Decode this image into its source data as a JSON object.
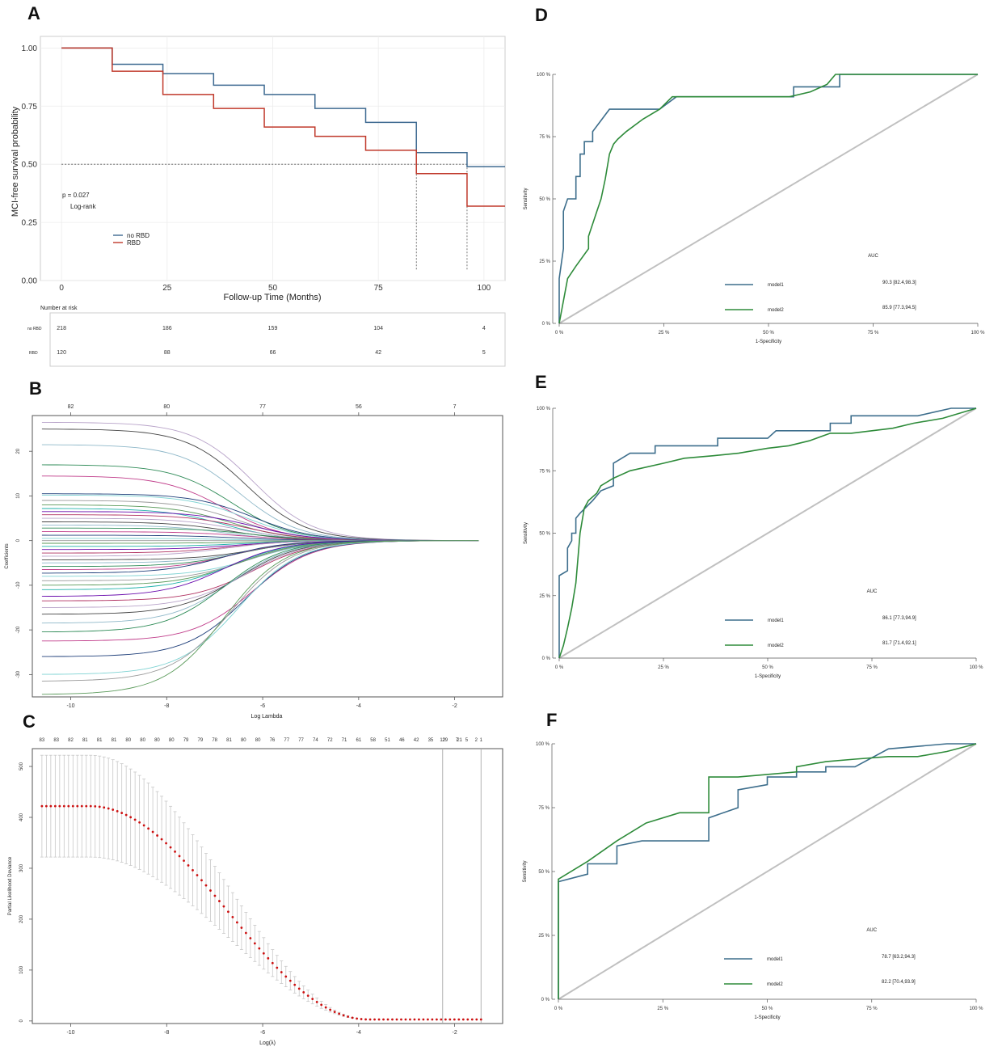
{
  "panels": {
    "A": {
      "letter": "A",
      "chart_data": {
        "type": "line",
        "ylabel": "MCI-free survival probability",
        "xlabel": "Follow-up Time (Months)",
        "xlim": [
          -5,
          105
        ],
        "ylim": [
          0,
          1.05
        ],
        "x_ticks": [
          0,
          25,
          50,
          75,
          100
        ],
        "y_ticks": [
          0,
          0.25,
          0.5,
          0.75,
          1.0
        ],
        "x_tick_labels": [
          "0",
          "25",
          "50",
          "75",
          "100"
        ],
        "y_tick_labels": [
          "0.00",
          "0.25",
          "0.50",
          "0.75",
          "1.00"
        ],
        "pvalue": "p = 0.027",
        "test": "Log-rank",
        "median_ref": 0.5,
        "medians": [
          84,
          96
        ],
        "series": [
          {
            "name": "no RBD",
            "color": "#3e6a91",
            "x": [
              0,
              12,
              24,
              36,
              48,
              60,
              72,
              84,
              96,
              105
            ],
            "y": [
              1.0,
              0.93,
              0.89,
              0.84,
              0.8,
              0.74,
              0.68,
              0.55,
              0.49,
              0.49
            ]
          },
          {
            "name": "RBD",
            "color": "#c0392b",
            "x": [
              0,
              12,
              24,
              36,
              48,
              60,
              72,
              84,
              96,
              105
            ],
            "y": [
              1.0,
              0.9,
              0.8,
              0.74,
              0.66,
              0.62,
              0.56,
              0.46,
              0.32,
              0.32
            ]
          }
        ],
        "risk_table": {
          "title": "Number at risk",
          "times": [
            0,
            25,
            50,
            75,
            100
          ],
          "rows": [
            {
              "label": "no RBD",
              "color": "#3e6a91",
              "values": [
                "218",
                "186",
                "159",
                "104",
                "4"
              ]
            },
            {
              "label": "RBD",
              "color": "#c0392b",
              "values": [
                "120",
                "88",
                "66",
                "42",
                "5"
              ]
            }
          ]
        }
      }
    },
    "B": {
      "letter": "B",
      "chart_data": {
        "type": "line",
        "xlabel": "Log Lambda",
        "ylabel": "Coefficients",
        "xlim": [
          -10.8,
          -1.0
        ],
        "ylim": [
          -35,
          28
        ],
        "x_ticks": [
          -10,
          -8,
          -6,
          -4,
          -2
        ],
        "x_tick_labels": [
          "-10",
          "-8",
          "-6",
          "-4",
          "-2"
        ],
        "y_ticks": [
          -30,
          -20,
          -10,
          0,
          10,
          20
        ],
        "y_tick_labels": [
          "-30",
          "-20",
          "-10",
          "0",
          "10",
          "20"
        ],
        "top_ticks": [
          -10,
          -8,
          -6,
          -4,
          -2
        ],
        "top_labels": [
          "82",
          "80",
          "77",
          "56",
          "7"
        ],
        "x_range": [
          -10.6,
          -1.5
        ],
        "start_coefficients": [
          26.5,
          25.0,
          21.5,
          17.0,
          14.5,
          10.5,
          10.2,
          9.0,
          8.0,
          7.2,
          6.5,
          5.8,
          5.0,
          4.2,
          3.5,
          2.8,
          2.0,
          1.2,
          0.5,
          0.0,
          -0.6,
          -1.3,
          -2.0,
          -2.8,
          -3.5,
          -4.3,
          -5.0,
          -5.8,
          -6.5,
          -7.3,
          -8.0,
          -9.0,
          -10.0,
          -11.0,
          -12.5,
          -13.5,
          -15.0,
          -16.5,
          -18.5,
          -20.5,
          -22.5,
          -26.0,
          -30.0,
          -31.5,
          -34.5
        ],
        "palette": [
          "#b8a3c9",
          "#444444",
          "#8fb8c9",
          "#2e8b57",
          "#c03c8a",
          "#1f3f7a",
          "#7fd3d3",
          "#999999",
          "#5a9a5a",
          "#20b2aa",
          "#6a0dad",
          "#b03060"
        ]
      }
    },
    "C": {
      "letter": "C",
      "chart_data": {
        "type": "scatter",
        "xlabel": "Log(λ)",
        "ylabel": "Partial Likelihood Deviance",
        "xlim": [
          -10.8,
          -1.0
        ],
        "ylim": [
          -5,
          535
        ],
        "x_ticks": [
          -10,
          -8,
          -6,
          -4,
          -2
        ],
        "x_tick_labels": [
          "-10",
          "-8",
          "-6",
          "-4",
          "-2"
        ],
        "y_ticks": [
          0,
          100,
          200,
          300,
          400,
          500
        ],
        "y_tick_labels": [
          "0",
          "100",
          "200",
          "300",
          "400",
          "500"
        ],
        "top_labels": [
          "83",
          "83",
          "82",
          "81",
          "81",
          "81",
          "80",
          "80",
          "80",
          "80",
          "79",
          "79",
          "78",
          "81",
          "80",
          "80",
          "76",
          "77",
          "77",
          "74",
          "72",
          "71",
          "61",
          "58",
          "51",
          "46",
          "42",
          "35",
          "29",
          "21",
          "12",
          "7",
          "5",
          "2",
          "1"
        ],
        "top_x": [
          -10.6,
          -10.3,
          -10.0,
          -9.7,
          -9.4,
          -9.1,
          -8.8,
          -8.5,
          -8.2,
          -7.9,
          -7.6,
          -7.3,
          -7.0,
          -6.7,
          -6.4,
          -6.1,
          -5.8,
          -5.5,
          -5.2,
          -4.9,
          -4.6,
          -4.3,
          -4.0,
          -3.7,
          -3.4,
          -3.1,
          -2.8,
          -2.5,
          -2.2,
          -1.9,
          -2.25,
          -1.95,
          -1.75,
          -1.55,
          -1.45
        ],
        "vlines": [
          -2.25,
          -1.45
        ],
        "x_start": -10.6,
        "x_end": -1.45,
        "plateau": 422,
        "plateau_until": -9.6,
        "floor": 3,
        "decay_end": -3.8,
        "err_upper": 522,
        "err_lower": 322,
        "point_color": "#cc1111"
      }
    },
    "D": {
      "letter": "D",
      "chart_data": {
        "type": "line",
        "xlabel": "1-Specificity",
        "ylabel": "Sensitivity",
        "xlim": [
          0,
          1
        ],
        "ylim": [
          0,
          1
        ],
        "ticks": [
          0,
          0.25,
          0.5,
          0.75,
          1
        ],
        "tick_labels": [
          "0 %",
          "25 %",
          "50 %",
          "75 %",
          "100 %"
        ],
        "auc_title": "AUC",
        "series": [
          {
            "name": "model1",
            "color": "#3d6e8c",
            "auc": "90.3 [82.4,98.3]",
            "x": [
              0,
              0,
              0.01,
              0.01,
              0.02,
              0.02,
              0.04,
              0.04,
              0.05,
              0.05,
              0.06,
              0.06,
              0.08,
              0.08,
              0.12,
              0.24,
              0.28,
              0.56,
              0.56,
              0.62,
              0.65,
              0.65,
              0.67,
              0.67,
              1.0
            ],
            "y": [
              0,
              0.18,
              0.3,
              0.45,
              0.5,
              0.5,
              0.5,
              0.59,
              0.59,
              0.68,
              0.68,
              0.73,
              0.73,
              0.77,
              0.86,
              0.86,
              0.91,
              0.91,
              0.95,
              0.95,
              0.95,
              0.95,
              0.95,
              1.0,
              1.0
            ]
          },
          {
            "name": "model2",
            "color": "#2e8b3a",
            "auc": "85.9 [77.3,94.5]",
            "x": [
              0,
              0.02,
              0.04,
              0.07,
              0.07,
              0.09,
              0.1,
              0.11,
              0.12,
              0.13,
              0.14,
              0.16,
              0.2,
              0.24,
              0.27,
              0.55,
              0.6,
              0.64,
              0.66,
              1.0
            ],
            "y": [
              0,
              0.18,
              0.23,
              0.3,
              0.35,
              0.45,
              0.5,
              0.58,
              0.68,
              0.72,
              0.74,
              0.77,
              0.82,
              0.86,
              0.91,
              0.91,
              0.93,
              0.96,
              1.0,
              1.0
            ]
          }
        ]
      }
    },
    "E": {
      "letter": "E",
      "chart_data": {
        "type": "line",
        "xlabel": "1-Specificity",
        "ylabel": "Sensitivity",
        "xlim": [
          0,
          1
        ],
        "ylim": [
          0,
          1
        ],
        "ticks": [
          0,
          0.25,
          0.5,
          0.75,
          1
        ],
        "tick_labels": [
          "0 %",
          "25 %",
          "50 %",
          "75 %",
          "100 %"
        ],
        "auc_title": "AUC",
        "series": [
          {
            "name": "model1",
            "color": "#3d6e8c",
            "auc": "86.1 [77.3,94.9]",
            "x": [
              0,
              0,
              0.02,
              0.02,
              0.03,
              0.03,
              0.04,
              0.04,
              0.05,
              0.08,
              0.1,
              0.13,
              0.13,
              0.15,
              0.17,
              0.23,
              0.23,
              0.38,
              0.38,
              0.5,
              0.52,
              0.65,
              0.65,
              0.67,
              0.7,
              0.7,
              0.86,
              0.94,
              1.0
            ],
            "y": [
              0,
              0.33,
              0.35,
              0.44,
              0.47,
              0.5,
              0.5,
              0.56,
              0.58,
              0.63,
              0.67,
              0.69,
              0.78,
              0.8,
              0.82,
              0.82,
              0.85,
              0.85,
              0.88,
              0.88,
              0.91,
              0.91,
              0.94,
              0.94,
              0.94,
              0.97,
              0.97,
              1.0,
              1.0
            ]
          },
          {
            "name": "model2",
            "color": "#2e8b3a",
            "auc": "81.7 [71.4,92.1]",
            "x": [
              0,
              0.01,
              0.02,
              0.03,
              0.04,
              0.05,
              0.06,
              0.07,
              0.09,
              0.1,
              0.13,
              0.17,
              0.25,
              0.3,
              0.37,
              0.43,
              0.5,
              0.55,
              0.6,
              0.65,
              0.7,
              0.75,
              0.8,
              0.85,
              0.92,
              1.0
            ],
            "y": [
              0,
              0.05,
              0.12,
              0.2,
              0.3,
              0.5,
              0.6,
              0.63,
              0.66,
              0.69,
              0.72,
              0.75,
              0.78,
              0.8,
              0.81,
              0.82,
              0.84,
              0.85,
              0.87,
              0.9,
              0.9,
              0.91,
              0.92,
              0.94,
              0.96,
              1.0
            ]
          }
        ]
      }
    },
    "F": {
      "letter": "F",
      "chart_data": {
        "type": "line",
        "xlabel": "1-Specificity",
        "ylabel": "Sensitivity",
        "xlim": [
          0,
          1
        ],
        "ylim": [
          0,
          1
        ],
        "ticks": [
          0,
          0.25,
          0.5,
          0.75,
          1
        ],
        "tick_labels": [
          "0 %",
          "25 %",
          "50 %",
          "75 %",
          "100 %"
        ],
        "auc_title": "AUC",
        "series": [
          {
            "name": "model1",
            "color": "#3d6e8c",
            "auc": "78.7 [63.2,94.3]",
            "x": [
              0,
              0,
              0.07,
              0.07,
              0.14,
              0.14,
              0.2,
              0.36,
              0.36,
              0.43,
              0.43,
              0.5,
              0.5,
              0.57,
              0.57,
              0.64,
              0.64,
              0.71,
              0.79,
              0.93,
              1.0
            ],
            "y": [
              0,
              0.46,
              0.49,
              0.53,
              0.53,
              0.6,
              0.62,
              0.62,
              0.71,
              0.75,
              0.82,
              0.84,
              0.87,
              0.87,
              0.89,
              0.89,
              0.91,
              0.91,
              0.98,
              1.0,
              1.0
            ]
          },
          {
            "name": "model2",
            "color": "#2e8b3a",
            "auc": "82.2 [70.4,93.9]",
            "x": [
              0,
              0,
              0.07,
              0.14,
              0.21,
              0.29,
              0.36,
              0.36,
              0.43,
              0.5,
              0.57,
              0.57,
              0.64,
              0.71,
              0.79,
              0.86,
              0.93,
              1.0
            ],
            "y": [
              0,
              0.47,
              0.54,
              0.62,
              0.69,
              0.73,
              0.73,
              0.87,
              0.87,
              0.88,
              0.89,
              0.91,
              0.93,
              0.94,
              0.95,
              0.95,
              0.97,
              1.0
            ]
          }
        ]
      }
    }
  }
}
